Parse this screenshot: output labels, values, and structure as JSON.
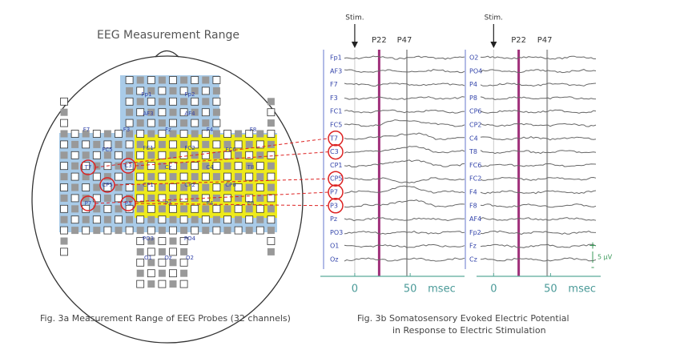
{
  "fig_3a": {
    "title": "EEG Measurement Range",
    "electrodes": [
      "Fp1",
      "Fp2",
      "AF3",
      "AF4",
      "F7",
      "F3",
      "Fz",
      "F4",
      "F8",
      "FC5",
      "FC1",
      "FC2",
      "FC6",
      "T7",
      "C3",
      "Cz",
      "C4",
      "T8",
      "CP5",
      "CP1",
      "CP2",
      "CP6",
      "P7",
      "P3",
      "Pz",
      "P4",
      "P8",
      "PO3",
      "PO4",
      "O1",
      "Oz",
      "O2"
    ],
    "caption": "Fig. 3a  Measurement Range of EEG Probes (32 channels)"
  },
  "fig_3b": {
    "caption_line1": "Fig. 3b  Somatosensory Evoked Electric Potential",
    "caption_line2": "in Response to Electric Stimulation",
    "panels": [
      {
        "channels": [
          "Fp1",
          "AF3",
          "F7",
          "F3",
          "FC1",
          "FC5",
          "T7",
          "C3",
          "CP1",
          "CP5",
          "P7",
          "P3",
          "Pz",
          "PO3",
          "O1",
          "Oz"
        ],
        "stim": {
          "label": "Stim.",
          "value": 0
        },
        "markers": [
          {
            "label": "P22",
            "value": 22,
            "color": "#a0307a"
          },
          {
            "label": "P47",
            "value": 47,
            "color": "#a8a8a8"
          }
        ],
        "xlim": [
          -31,
          99
        ],
        "xticks": [
          0,
          50
        ],
        "x_unit": "msec"
      },
      {
        "channels": [
          "O2",
          "PO4",
          "P4",
          "P8",
          "CP6",
          "CP2",
          "C4",
          "T8",
          "FC6",
          "FC2",
          "F4",
          "F8",
          "AF4",
          "Fp2",
          "Fz",
          "Cz"
        ],
        "stim": {
          "label": "Stim.",
          "value": 0
        },
        "markers": [
          {
            "label": "P22",
            "value": 22,
            "color": "#a0307a"
          },
          {
            "label": "P47",
            "value": 47,
            "color": "#a8a8a8"
          }
        ],
        "xlim": [
          -15,
          94
        ],
        "xticks": [
          0,
          50
        ],
        "x_unit": "msec"
      }
    ],
    "scale_bar": {
      "plus": "+",
      "label": "5 μV",
      "minus": "-"
    }
  }
}
